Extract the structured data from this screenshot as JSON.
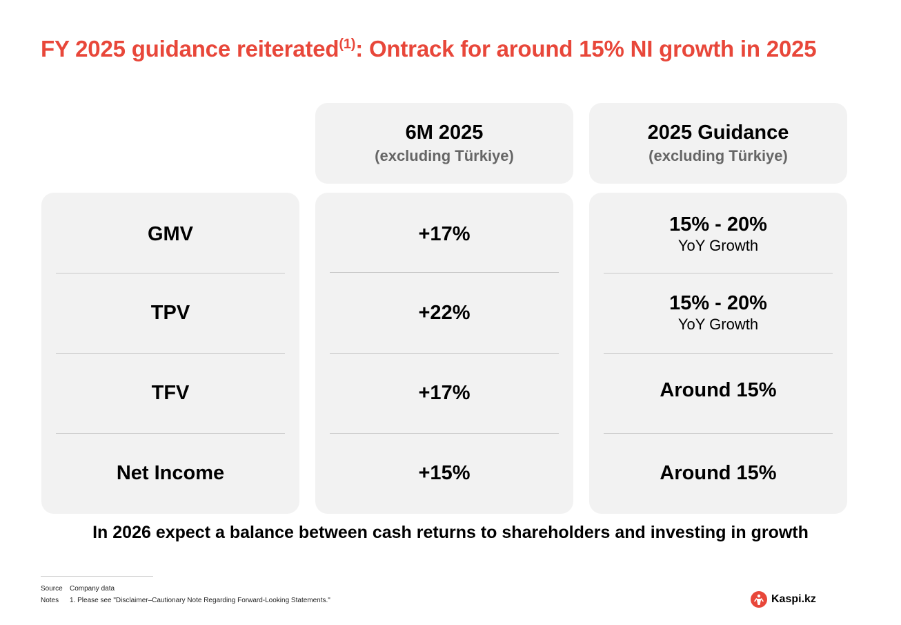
{
  "title": {
    "main": "FY 2025 guidance reiterated",
    "superscript": "(1)",
    "rest": ": Ontrack for around 15% NI growth in 2025"
  },
  "columns": {
    "period": {
      "title": "6M 2025",
      "subtitle": "(excluding Türkiye)"
    },
    "guidance": {
      "title": "2025 Guidance",
      "subtitle": "(excluding Türkiye)"
    }
  },
  "rows": [
    {
      "metric": "GMV",
      "actual": "+17%",
      "guidance": "15% - 20%",
      "guidance_sub": "YoY Growth"
    },
    {
      "metric": "TPV",
      "actual": "+22%",
      "guidance": "15% - 20%",
      "guidance_sub": "YoY Growth"
    },
    {
      "metric": "TFV",
      "actual": "+17%",
      "guidance": "Around 15%",
      "guidance_sub": ""
    },
    {
      "metric": "Net Income",
      "actual": "+15%",
      "guidance": "Around 15%",
      "guidance_sub": ""
    }
  ],
  "statement": "In 2026 expect a balance between cash returns to shareholders and investing in growth",
  "footer": {
    "source_label": "Source",
    "source_text": "Company data",
    "notes_label": "Notes",
    "notes_text": "1. Please see \"Disclaimer–Cautionary Note Regarding Forward-Looking Statements.\""
  },
  "logo": {
    "text": "Kaspi.kz",
    "icon": "kaspi-logo-icon"
  },
  "colors": {
    "accent": "#e8473a",
    "panel": "#f2f2f2",
    "subtitle": "#666666"
  }
}
